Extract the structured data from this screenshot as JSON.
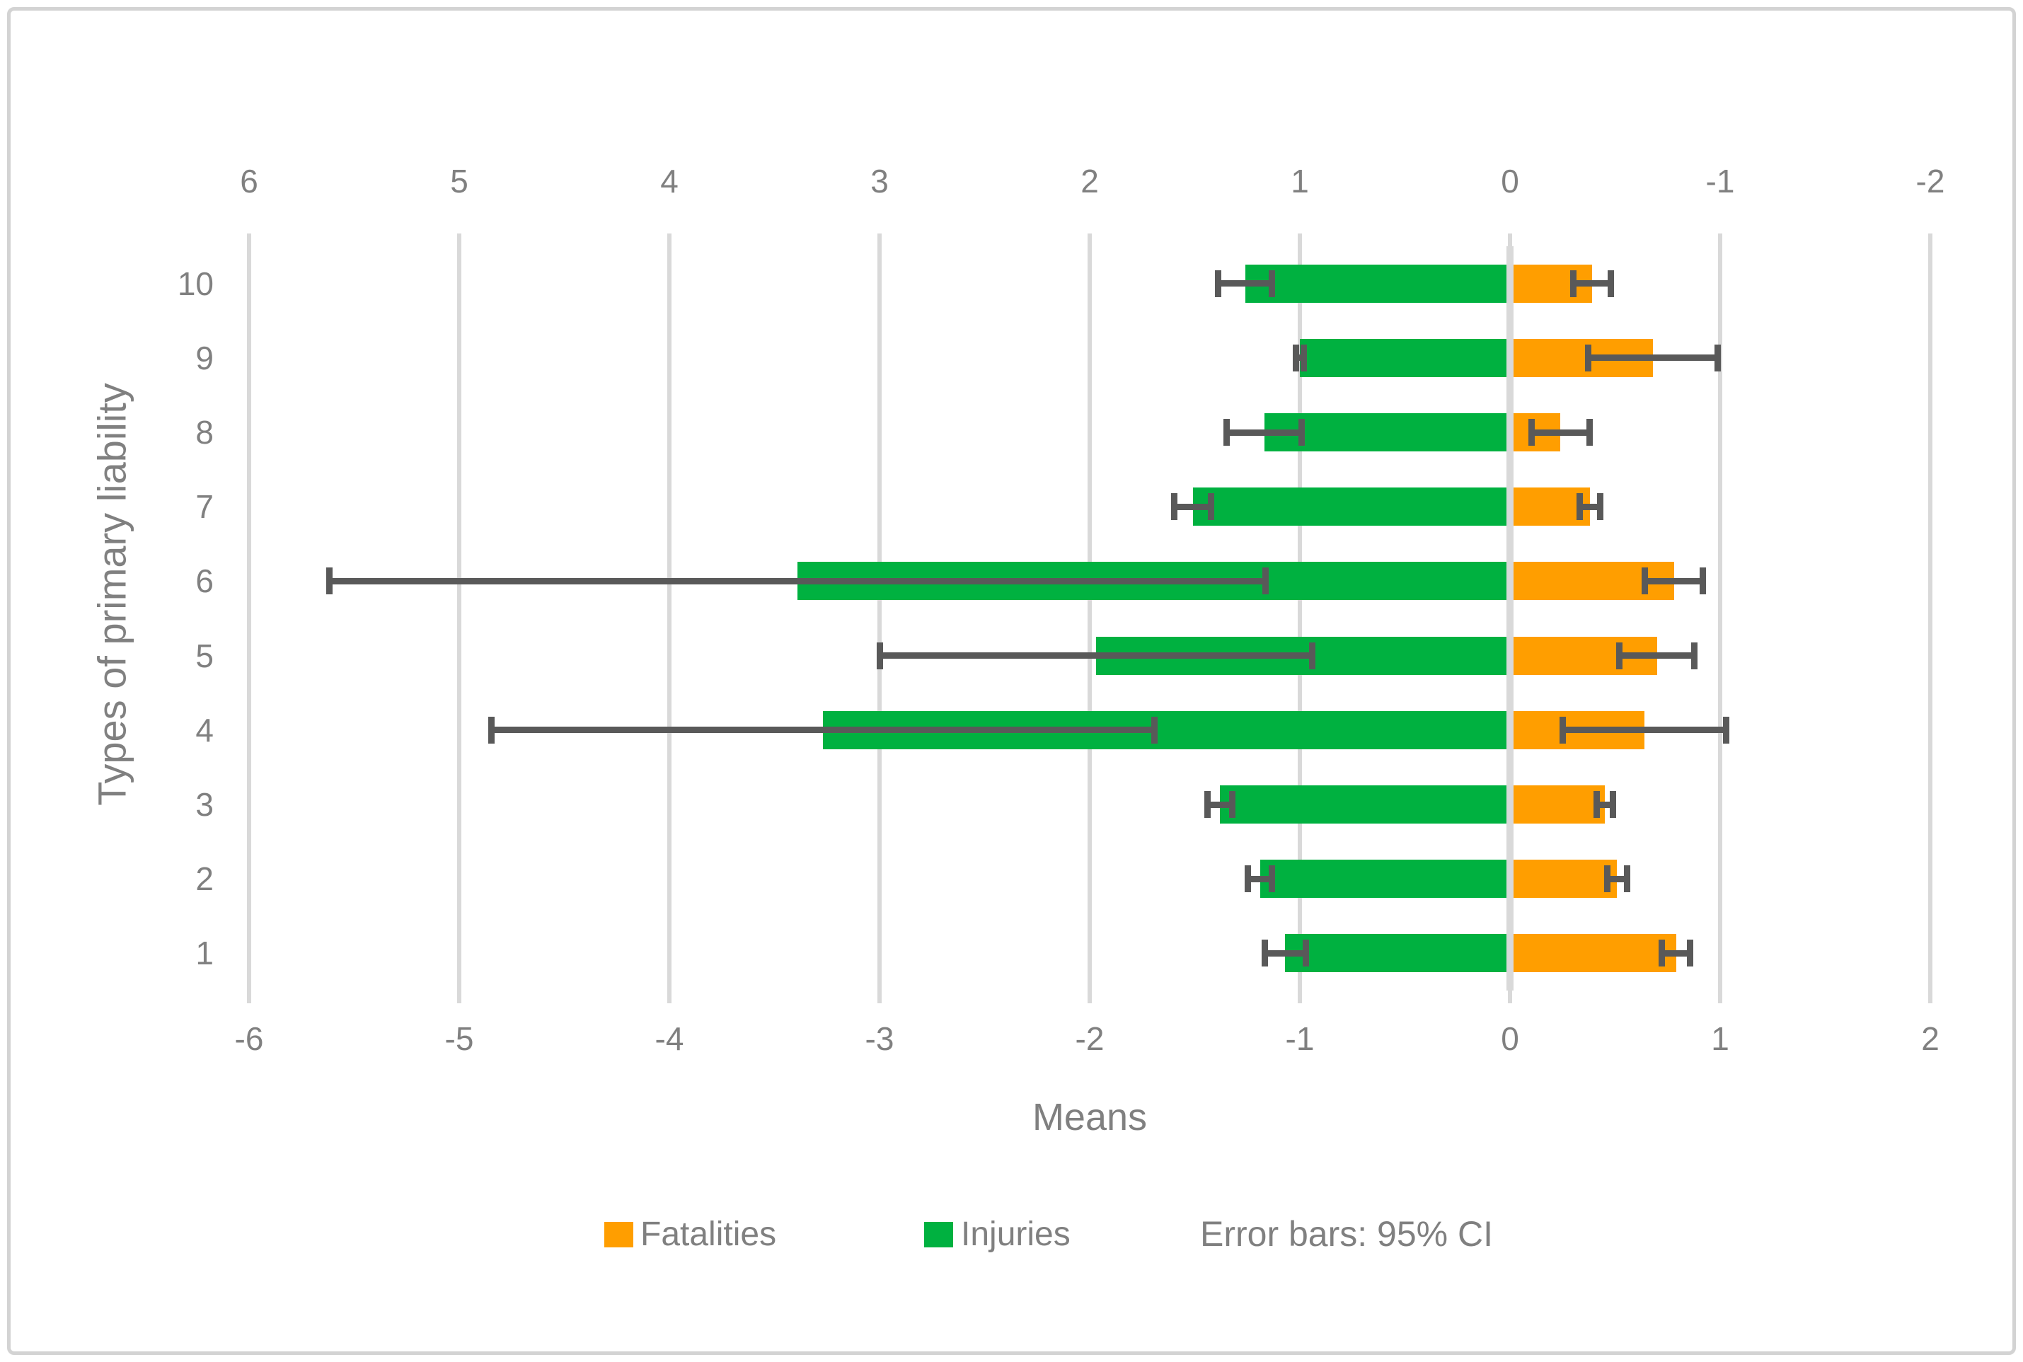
{
  "chart_data": {
    "type": "bar",
    "orientation": "horizontal-diverging",
    "title": "",
    "xlabel": "Means",
    "ylabel": "Types of primary liability",
    "categories_top_to_bottom": [
      "10",
      "9",
      "8",
      "7",
      "6",
      "5",
      "4",
      "3",
      "2",
      "1"
    ],
    "axes": {
      "top_ticks": [
        "6",
        "5",
        "4",
        "3",
        "2",
        "1",
        "0",
        "-1",
        "-2"
      ],
      "bottom_ticks": [
        "-6",
        "-5",
        "-4",
        "-3",
        "-2",
        "-1",
        "0",
        "1",
        "2"
      ],
      "x_range_bottom_axis": [
        -6,
        2
      ],
      "note": "top axis is the bottom axis mirrored in sign; both share the same zero gridline"
    },
    "series": [
      {
        "name": "Fatalities",
        "color": "#FF9E00",
        "values": [
          0.39,
          0.68,
          0.24,
          0.38,
          0.78,
          0.7,
          0.64,
          0.45,
          0.51,
          0.79
        ],
        "ci95": [
          0.09,
          0.31,
          0.14,
          0.05,
          0.14,
          0.18,
          0.39,
          0.04,
          0.05,
          0.07
        ]
      },
      {
        "name": "Injuries",
        "color": "#00B140",
        "values": [
          -1.26,
          -1.0,
          -1.17,
          -1.51,
          -3.39,
          -1.97,
          -3.27,
          -1.38,
          -1.19,
          -1.07
        ],
        "ci95": [
          0.13,
          0.02,
          0.18,
          0.09,
          2.23,
          1.03,
          1.58,
          0.06,
          0.06,
          0.1
        ]
      }
    ],
    "legend": [
      {
        "label": "Fatalities",
        "color": "#FF9E00"
      },
      {
        "label": "Injuries",
        "color": "#00B140"
      }
    ],
    "error_note": "Error bars: 95% CI",
    "grid": true,
    "colors": {
      "grid": "#D9D9D9",
      "axis_text": "#808080",
      "error_bar": "#595959",
      "frame_border": "#D3D3D3"
    }
  }
}
